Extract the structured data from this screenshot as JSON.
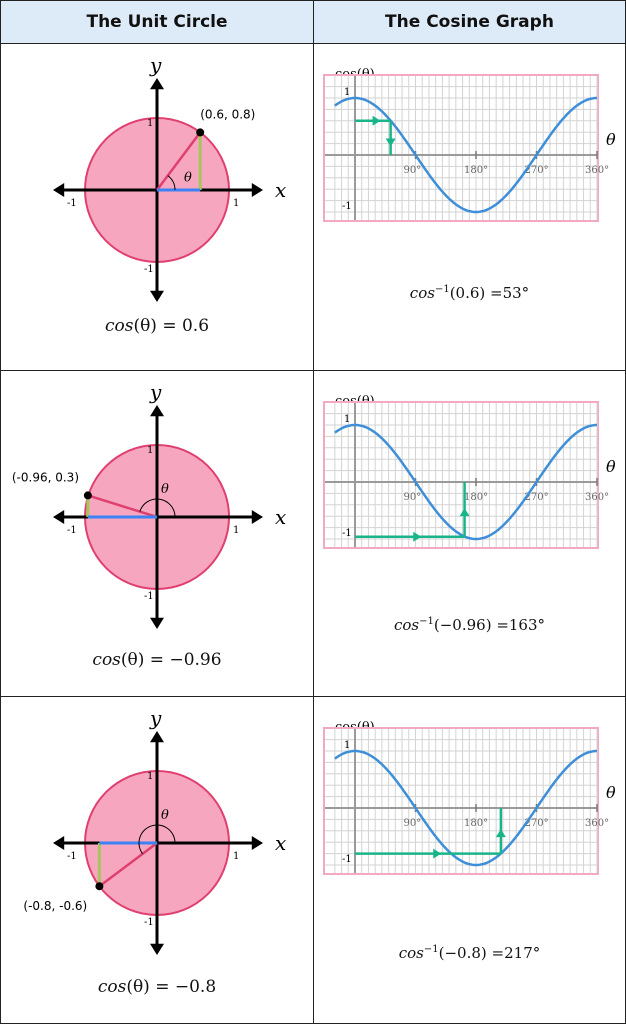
{
  "headers": {
    "left": "The Unit Circle",
    "right": "The Cosine Graph"
  },
  "rows": [
    {
      "circle": {
        "x": 0.6,
        "y": 0.8,
        "point_label": "(0.6, 0.8)",
        "theta_label": "θ",
        "x_axis": "x",
        "y_axis": "y",
        "tick_pos": "1",
        "tick_neg": "-1"
      },
      "circle_caption": {
        "fn": "cos",
        "arg": "(θ)",
        "eq": " = 0.6"
      },
      "graph": {
        "ylabel": "cos(θ)",
        "xlabel": "θ",
        "target": 0.6,
        "angle": 53,
        "ticks": [
          "90°",
          "180°",
          "270°",
          "360°"
        ],
        "y_top": "1",
        "y_bottom": "-1"
      },
      "graph_caption": {
        "fn": "cos",
        "sup": "−1",
        "arg": "(0.6)",
        "eq": " =53°"
      }
    },
    {
      "circle": {
        "x": -0.96,
        "y": 0.3,
        "point_label": "(-0.96, 0.3)",
        "theta_label": "θ",
        "x_axis": "x",
        "y_axis": "y",
        "tick_pos": "1",
        "tick_neg": "-1"
      },
      "circle_caption": {
        "fn": "cos",
        "arg": "(θ)",
        "eq": " = −0.96"
      },
      "graph": {
        "ylabel": "cos(θ)",
        "xlabel": "θ",
        "target": -0.96,
        "angle": 163,
        "ticks": [
          "90°",
          "180°",
          "270°",
          "360°"
        ],
        "y_top": "1",
        "y_bottom": "-1"
      },
      "graph_caption": {
        "fn": "cos",
        "sup": "−1",
        "arg": "(−0.96)",
        "eq": " =163°"
      }
    },
    {
      "circle": {
        "x": -0.8,
        "y": -0.6,
        "point_label": "(-0.8, -0.6)",
        "theta_label": "θ",
        "x_axis": "x",
        "y_axis": "y",
        "tick_pos": "1",
        "tick_neg": "-1"
      },
      "circle_caption": {
        "fn": "cos",
        "arg": "(θ)",
        "eq": " = −0.8"
      },
      "graph": {
        "ylabel": "cos(θ)",
        "xlabel": "θ",
        "target": -0.8,
        "angle": 217,
        "ticks": [
          "90°",
          "180°",
          "270°",
          "360°"
        ],
        "y_top": "1",
        "y_bottom": "-1"
      },
      "graph_caption": {
        "fn": "cos",
        "sup": "−1",
        "arg": "(−0.8)",
        "eq": " =217°"
      }
    }
  ],
  "colors": {
    "circle_fill": "#f7a6bf",
    "circle_stroke": "#e0406f",
    "radius_line": "#e0406f",
    "cos_seg": "#3b82f6",
    "sin_seg": "#a3c75a",
    "curve": "#3f8fd8",
    "arrow": "#19b58a",
    "grid": "#d3d3d3",
    "graph_border": "#f3a9c2"
  }
}
